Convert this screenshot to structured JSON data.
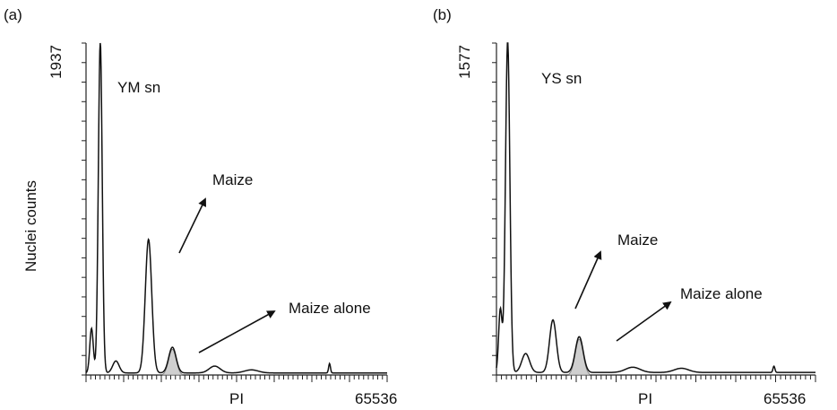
{
  "figure": {
    "ylabel": "Nuclei counts"
  },
  "chart_data": [
    {
      "type": "area",
      "panel_label": "(a)",
      "ymax_label": "1937",
      "x_label": "PI",
      "xmax_label": "65536",
      "xlim": [
        0,
        65536
      ],
      "ylim": [
        0,
        1937
      ],
      "sample_label": "YM sn",
      "annotations": [
        {
          "text": "Maize",
          "target_peak": 2
        },
        {
          "text": "Maize alone",
          "target_peak": 3
        }
      ],
      "baseline": 12,
      "peaks": [
        {
          "x": 1200,
          "height": 260,
          "width": 380
        },
        {
          "x": 3100,
          "height": 1937,
          "width": 420
        },
        {
          "x": 6500,
          "height": 70,
          "width": 700
        },
        {
          "x": 13600,
          "height": 780,
          "width": 700
        },
        {
          "x": 18800,
          "height": 150,
          "width": 800,
          "filled": true
        },
        {
          "x": 28000,
          "height": 40,
          "width": 1200
        },
        {
          "x": 36000,
          "height": 18,
          "width": 1500
        },
        {
          "x": 53000,
          "height": 55,
          "width": 200
        }
      ]
    },
    {
      "type": "area",
      "panel_label": "(b)",
      "ymax_label": "1577",
      "x_label": "PI",
      "xmax_label": "65536",
      "xlim": [
        0,
        65536
      ],
      "ylim": [
        0,
        1577
      ],
      "sample_label": "YS sn",
      "annotations": [
        {
          "text": "Maize",
          "target_peak": 3
        },
        {
          "text": "Maize alone",
          "target_peak": 4
        }
      ],
      "baseline": 12,
      "peaks": [
        {
          "x": 800,
          "height": 300,
          "width": 350
        },
        {
          "x": 2300,
          "height": 1577,
          "width": 450
        },
        {
          "x": 6000,
          "height": 90,
          "width": 800
        },
        {
          "x": 11600,
          "height": 250,
          "width": 700
        },
        {
          "x": 17000,
          "height": 170,
          "width": 800,
          "filled": true
        },
        {
          "x": 28000,
          "height": 25,
          "width": 1500
        },
        {
          "x": 38000,
          "height": 20,
          "width": 1500
        },
        {
          "x": 57000,
          "height": 30,
          "width": 200
        }
      ]
    }
  ]
}
